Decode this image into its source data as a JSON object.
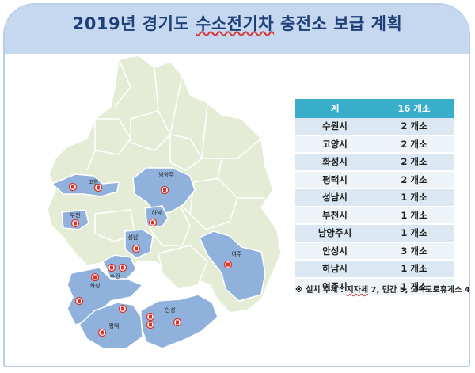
{
  "title": {
    "year": "2019년 경기도 ",
    "highlight": "수소전기차",
    "rest": " 충전소 보급 계획"
  },
  "table": {
    "header": {
      "col1": "계",
      "col2": "16 개소"
    },
    "rows": [
      {
        "city": "수원시",
        "count": "2 개소"
      },
      {
        "city": "고양시",
        "count": "2 개소"
      },
      {
        "city": "화성시",
        "count": "2 개소"
      },
      {
        "city": "평택시",
        "count": "2 개소"
      },
      {
        "city": "성남시",
        "count": "1 개소"
      },
      {
        "city": "부천시",
        "count": "1 개소"
      },
      {
        "city": "남양주시",
        "count": "1 개소"
      },
      {
        "city": "안성시",
        "count": "3 개소"
      },
      {
        "city": "하남시",
        "count": "1 개소"
      },
      {
        "city": "여주시",
        "count": "1 개소"
      }
    ]
  },
  "note": {
    "prefix": "※ 설치 주체 : ",
    "highlight": "지자체",
    "rest": " 7, 민간 5, 고속도로휴게소 4"
  },
  "map_labels": {
    "goyang": "고양",
    "namyangju": "남양주",
    "bucheon": "부천",
    "hanam": "하남",
    "seongnam": "성남",
    "yeoju": "여주",
    "suwon": "수원",
    "hwaseong": "화성",
    "anseong": "안성",
    "pyeongtaek": "평택"
  },
  "colors": {
    "highlight_region": "#8fb1db",
    "other_region": "#e4ecd6",
    "marker": "#d9342b",
    "header_bg": "#c5d8f0",
    "table_header": "#39aeca"
  }
}
